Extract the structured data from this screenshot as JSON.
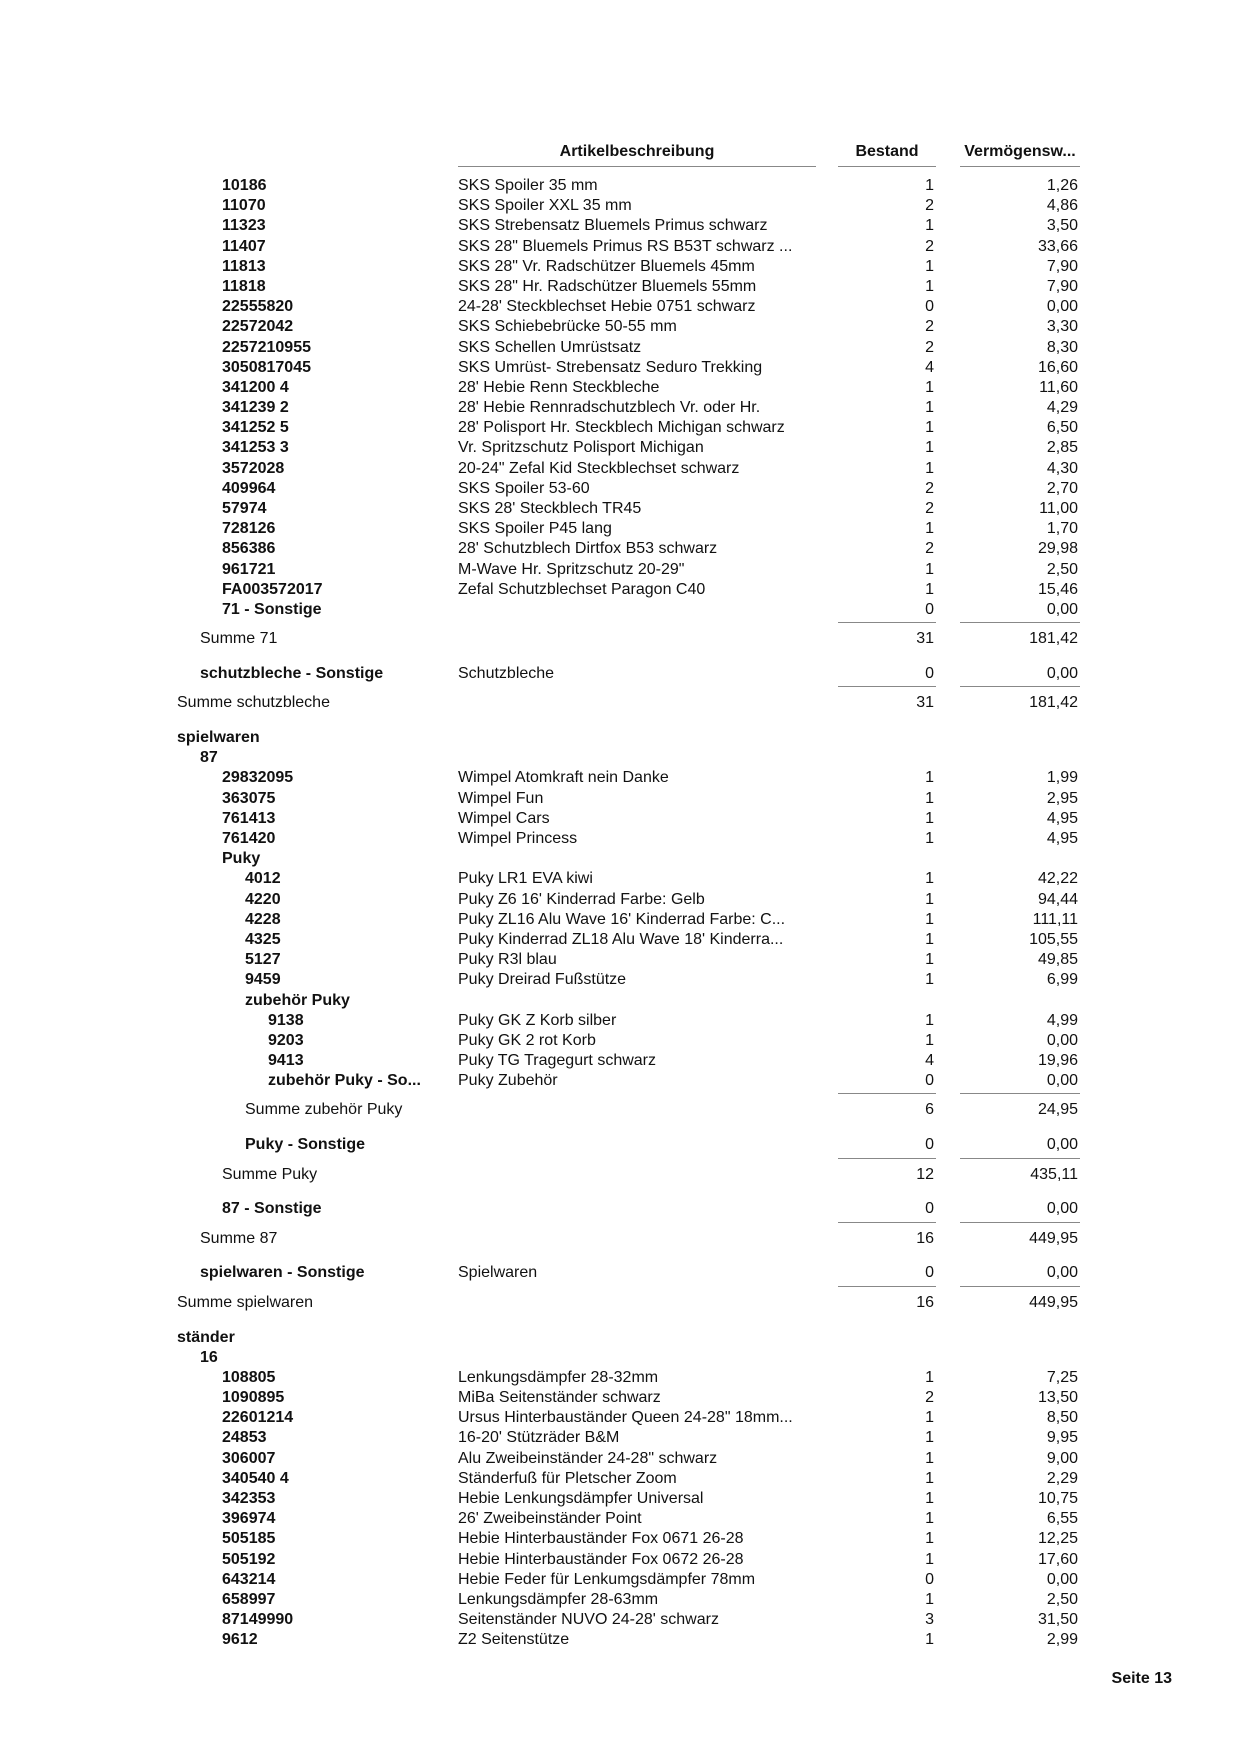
{
  "header": {
    "desc": "Artikelbeschreibung",
    "qty": "Bestand",
    "value": "Vermögensw..."
  },
  "rows": [
    {
      "kind": "item",
      "depth": 2,
      "code": "10186",
      "desc": "SKS Spoiler 35 mm",
      "qty": "1",
      "value": "1,26"
    },
    {
      "kind": "item",
      "depth": 2,
      "code": "11070",
      "desc": "SKS Spoiler XXL 35 mm",
      "qty": "2",
      "value": "4,86"
    },
    {
      "kind": "item",
      "depth": 2,
      "code": "11323",
      "desc": "SKS Strebensatz  Bluemels Primus schwarz",
      "qty": "1",
      "value": "3,50"
    },
    {
      "kind": "item",
      "depth": 2,
      "code": "11407",
      "desc": "SKS 28\" Bluemels Primus RS B53T schwarz ...",
      "qty": "2",
      "value": "33,66"
    },
    {
      "kind": "item",
      "depth": 2,
      "code": "11813",
      "desc": "SKS 28\" Vr. Radschützer Bluemels 45mm",
      "qty": "1",
      "value": "7,90"
    },
    {
      "kind": "item",
      "depth": 2,
      "code": "11818",
      "desc": "SKS 28\" Hr. Radschützer Bluemels 55mm",
      "qty": "1",
      "value": "7,90"
    },
    {
      "kind": "item",
      "depth": 2,
      "code": "22555820",
      "desc": "24-28' Steckblechset Hebie 0751 schwarz",
      "qty": "0",
      "value": "0,00"
    },
    {
      "kind": "item",
      "depth": 2,
      "code": "22572042",
      "desc": "SKS Schiebebrücke 50-55 mm",
      "qty": "2",
      "value": "3,30"
    },
    {
      "kind": "item",
      "depth": 2,
      "code": "2257210955",
      "desc": "SKS Schellen Umrüstsatz",
      "qty": "2",
      "value": "8,30"
    },
    {
      "kind": "item",
      "depth": 2,
      "code": "3050817045",
      "desc": "SKS Umrüst- Strebensatz Seduro Trekking",
      "qty": "4",
      "value": "16,60"
    },
    {
      "kind": "item",
      "depth": 2,
      "code": "341200 4",
      "desc": "28' Hebie Renn Steckbleche",
      "qty": "1",
      "value": "11,60"
    },
    {
      "kind": "item",
      "depth": 2,
      "code": "341239 2",
      "desc": "28' Hebie Rennradschutzblech Vr. oder Hr.",
      "qty": "1",
      "value": "4,29"
    },
    {
      "kind": "item",
      "depth": 2,
      "code": "341252 5",
      "desc": "28' Polisport Hr. Steckblech Michigan schwarz",
      "qty": "1",
      "value": "6,50"
    },
    {
      "kind": "item",
      "depth": 2,
      "code": "341253 3",
      "desc": "Vr. Spritzschutz  Polisport Michigan",
      "qty": "1",
      "value": "2,85"
    },
    {
      "kind": "item",
      "depth": 2,
      "code": "3572028",
      "desc": "20-24\" Zefal Kid Steckblechset schwarz",
      "qty": "1",
      "value": "4,30"
    },
    {
      "kind": "item",
      "depth": 2,
      "code": "409964",
      "desc": "SKS Spoiler 53-60",
      "qty": "2",
      "value": "2,70"
    },
    {
      "kind": "item",
      "depth": 2,
      "code": "57974",
      "desc": "SKS 28' Steckblech TR45",
      "qty": "2",
      "value": "11,00"
    },
    {
      "kind": "item",
      "depth": 2,
      "code": "728126",
      "desc": "SKS Spoiler P45 lang",
      "qty": "1",
      "value": "1,70"
    },
    {
      "kind": "item",
      "depth": 2,
      "code": "856386",
      "desc": "28' Schutzblech Dirtfox  B53 schwarz",
      "qty": "2",
      "value": "29,98"
    },
    {
      "kind": "item",
      "depth": 2,
      "code": "961721",
      "desc": "M-Wave Hr. Spritzschutz 20-29\"",
      "qty": "1",
      "value": "2,50"
    },
    {
      "kind": "item",
      "depth": 2,
      "code": "FA003572017",
      "desc": "Zefal Schutzblechset Paragon C40",
      "qty": "1",
      "value": "15,46"
    },
    {
      "kind": "item",
      "depth": 2,
      "code": "71 - Sonstige",
      "desc": "",
      "qty": "0",
      "value": "0,00"
    },
    {
      "kind": "summe",
      "depth": 1,
      "code": "Summe 71",
      "desc": "",
      "qty": "31",
      "value": "181,42"
    },
    {
      "kind": "item",
      "depth": 1,
      "code": "schutzbleche - Sonstige",
      "desc": "Schutzbleche",
      "qty": "0",
      "value": "0,00"
    },
    {
      "kind": "summe",
      "depth": 0,
      "code": "Summe schutzbleche",
      "desc": "",
      "qty": "31",
      "value": "181,42"
    },
    {
      "kind": "group",
      "depth": 0,
      "code": "spielwaren",
      "desc": "",
      "qty": "",
      "value": ""
    },
    {
      "kind": "group",
      "depth": 1,
      "code": "87",
      "desc": "",
      "qty": "",
      "value": ""
    },
    {
      "kind": "item",
      "depth": 2,
      "code": "29832095",
      "desc": "Wimpel Atomkraft nein Danke",
      "qty": "1",
      "value": "1,99"
    },
    {
      "kind": "item",
      "depth": 2,
      "code": "363075",
      "desc": "Wimpel Fun",
      "qty": "1",
      "value": "2,95"
    },
    {
      "kind": "item",
      "depth": 2,
      "code": "761413",
      "desc": "Wimpel Cars",
      "qty": "1",
      "value": "4,95"
    },
    {
      "kind": "item",
      "depth": 2,
      "code": "761420",
      "desc": "Wimpel Princess",
      "qty": "1",
      "value": "4,95"
    },
    {
      "kind": "group",
      "depth": 2,
      "code": "Puky",
      "desc": "",
      "qty": "",
      "value": ""
    },
    {
      "kind": "item",
      "depth": 3,
      "code": "4012",
      "desc": "Puky LR1 EVA kiwi",
      "qty": "1",
      "value": "42,22"
    },
    {
      "kind": "item",
      "depth": 3,
      "code": "4220",
      "desc": "Puky Z6    16' Kinderrad  Farbe: Gelb",
      "qty": "1",
      "value": "94,44"
    },
    {
      "kind": "item",
      "depth": 3,
      "code": "4228",
      "desc": "Puky ZL16 Alu Wave  16' Kinderrad  Farbe: C...",
      "qty": "1",
      "value": "111,11"
    },
    {
      "kind": "item",
      "depth": 3,
      "code": "4325",
      "desc": "Puky Kinderrad ZL18 Alu Wave   18' Kinderra...",
      "qty": "1",
      "value": "105,55"
    },
    {
      "kind": "item",
      "depth": 3,
      "code": "5127",
      "desc": "Puky R3l blau",
      "qty": "1",
      "value": "49,85"
    },
    {
      "kind": "item",
      "depth": 3,
      "code": "9459",
      "desc": "Puky Dreirad Fußstütze",
      "qty": "1",
      "value": "6,99"
    },
    {
      "kind": "group",
      "depth": 3,
      "code": "zubehör Puky",
      "desc": "",
      "qty": "",
      "value": ""
    },
    {
      "kind": "item",
      "depth": 4,
      "code": "9138",
      "desc": "Puky GK Z Korb silber",
      "qty": "1",
      "value": "4,99"
    },
    {
      "kind": "item",
      "depth": 4,
      "code": "9203",
      "desc": "Puky GK 2 rot Korb",
      "qty": "1",
      "value": "0,00"
    },
    {
      "kind": "item",
      "depth": 4,
      "code": "9413",
      "desc": "Puky TG Tragegurt schwarz",
      "qty": "4",
      "value": "19,96"
    },
    {
      "kind": "item",
      "depth": 4,
      "code": "zubehör Puky - So...",
      "desc": "Puky Zubehör",
      "qty": "0",
      "value": "0,00"
    },
    {
      "kind": "summe",
      "depth": 3,
      "code": "Summe zubehör Puky",
      "desc": "",
      "qty": "6",
      "value": "24,95"
    },
    {
      "kind": "item",
      "depth": 3,
      "code": "Puky - Sonstige",
      "desc": "",
      "qty": "0",
      "value": "0,00"
    },
    {
      "kind": "summe",
      "depth": 2,
      "code": "Summe Puky",
      "desc": "",
      "qty": "12",
      "value": "435,11"
    },
    {
      "kind": "item",
      "depth": 2,
      "code": "87 - Sonstige",
      "desc": "",
      "qty": "0",
      "value": "0,00"
    },
    {
      "kind": "summe",
      "depth": 1,
      "code": "Summe 87",
      "desc": "",
      "qty": "16",
      "value": "449,95"
    },
    {
      "kind": "item",
      "depth": 1,
      "code": "spielwaren - Sonstige",
      "desc": "Spielwaren",
      "qty": "0",
      "value": "0,00"
    },
    {
      "kind": "summe",
      "depth": 0,
      "code": "Summe spielwaren",
      "desc": "",
      "qty": "16",
      "value": "449,95"
    },
    {
      "kind": "group",
      "depth": 0,
      "code": "ständer",
      "desc": "",
      "qty": "",
      "value": ""
    },
    {
      "kind": "group",
      "depth": 1,
      "code": "16",
      "desc": "",
      "qty": "",
      "value": ""
    },
    {
      "kind": "item",
      "depth": 2,
      "code": "108805",
      "desc": "Lenkungsdämpfer 28-32mm",
      "qty": "1",
      "value": "7,25"
    },
    {
      "kind": "item",
      "depth": 2,
      "code": "1090895",
      "desc": "MiBa Seitenständer schwarz",
      "qty": "2",
      "value": "13,50"
    },
    {
      "kind": "item",
      "depth": 2,
      "code": "22601214",
      "desc": "Ursus Hinterbauständer Queen 24-28\" 18mm...",
      "qty": "1",
      "value": "8,50"
    },
    {
      "kind": "item",
      "depth": 2,
      "code": "24853",
      "desc": "16-20' Stützräder B&M",
      "qty": "1",
      "value": "9,95"
    },
    {
      "kind": "item",
      "depth": 2,
      "code": "306007",
      "desc": "Alu Zweibeinständer 24-28\" schwarz",
      "qty": "1",
      "value": "9,00"
    },
    {
      "kind": "item",
      "depth": 2,
      "code": "340540 4",
      "desc": "Ständerfuß für Pletscher Zoom",
      "qty": "1",
      "value": "2,29"
    },
    {
      "kind": "item",
      "depth": 2,
      "code": "342353",
      "desc": "Hebie Lenkungsdämpfer Universal",
      "qty": "1",
      "value": "10,75"
    },
    {
      "kind": "item",
      "depth": 2,
      "code": "396974",
      "desc": "26' Zweibeinständer Point",
      "qty": "1",
      "value": "6,55"
    },
    {
      "kind": "item",
      "depth": 2,
      "code": "505185",
      "desc": "Hebie Hinterbauständer Fox 0671 26-28",
      "qty": "1",
      "value": "12,25"
    },
    {
      "kind": "item",
      "depth": 2,
      "code": "505192",
      "desc": "Hebie Hinterbauständer Fox 0672 26-28",
      "qty": "1",
      "value": "17,60"
    },
    {
      "kind": "item",
      "depth": 2,
      "code": "643214",
      "desc": "Hebie Feder für Lenkumgsdämpfer 78mm",
      "qty": "0",
      "value": "0,00"
    },
    {
      "kind": "item",
      "depth": 2,
      "code": "658997",
      "desc": "Lenkungsdämpfer 28-63mm",
      "qty": "1",
      "value": "2,50"
    },
    {
      "kind": "item",
      "depth": 2,
      "code": "87149990",
      "desc": "Seitenständer NUVO 24-28' schwarz",
      "qty": "3",
      "value": "31,50"
    },
    {
      "kind": "item",
      "depth": 2,
      "code": "9612",
      "desc": "Z2 Seitenstütze",
      "qty": "1",
      "value": "2,99"
    }
  ],
  "footer": {
    "page": "Seite 13"
  }
}
